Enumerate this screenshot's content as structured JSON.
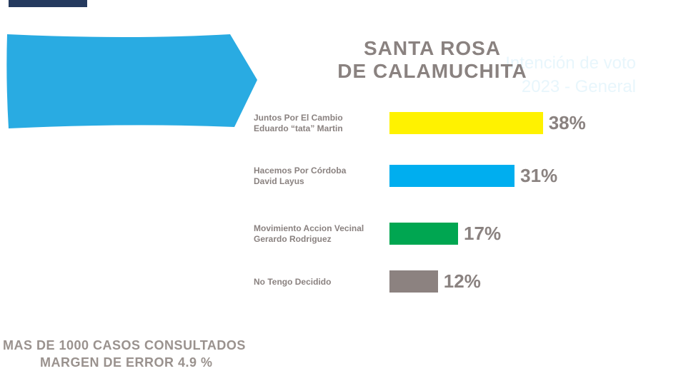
{
  "banner": {
    "line1": "Intención de voto",
    "line2": "2023 - General",
    "color": "#29abe2"
  },
  "chart_data": {
    "type": "bar",
    "orientation": "horizontal",
    "title_line1": "SANTA ROSA",
    "title_line2": "DE CALAMUCHITA",
    "categories": [
      {
        "line1": "Juntos Por El Cambio",
        "line2": "Eduardo “tata” Martin"
      },
      {
        "line1": "Hacemos Por Córdoba",
        "line2": "David Layus"
      },
      {
        "line1": "Movimiento Accion Vecinal",
        "line2": "Gerardo Rodriguez"
      },
      {
        "line1": "No Tengo Decidido",
        "line2": ""
      }
    ],
    "values": [
      38,
      31,
      17,
      12
    ],
    "value_labels": [
      "38%",
      "31%",
      "17%",
      "12%"
    ],
    "colors": [
      "#fff200",
      "#00aeef",
      "#00a651",
      "#8c8280"
    ],
    "unit": "%"
  },
  "footer": {
    "line1": "MAS DE 1000 CASOS CONSULTADOS",
    "line2": "MARGEN DE ERROR 4.9 %"
  }
}
